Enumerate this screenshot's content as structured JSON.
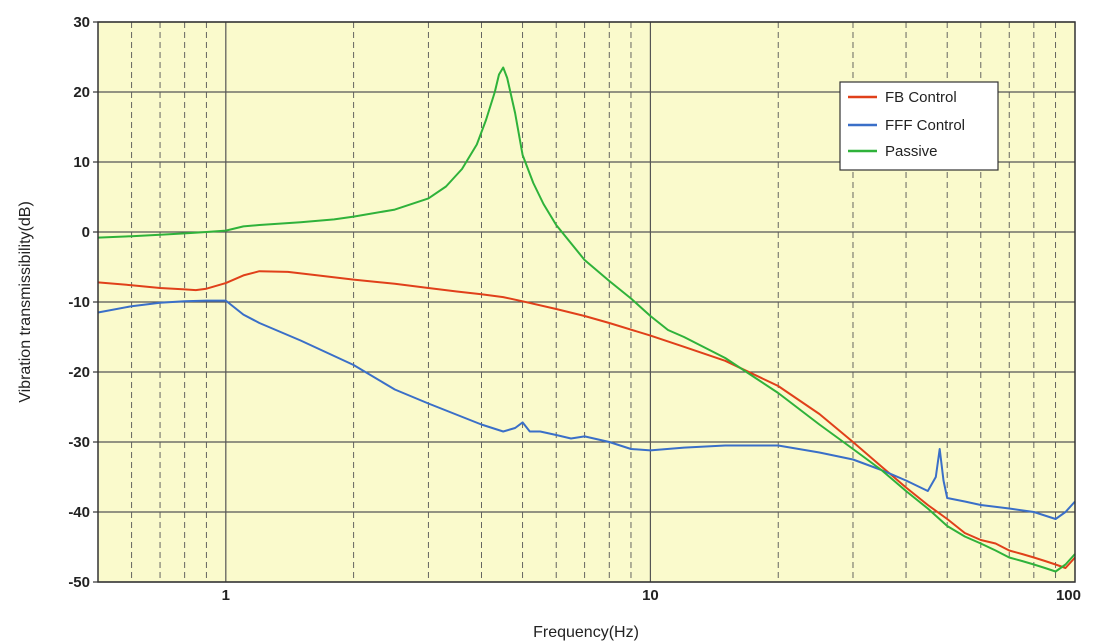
{
  "chart_data": {
    "type": "line",
    "title": "",
    "xlabel": "Frequency(Hz)",
    "ylabel": "Vibration transmissibility(dB)",
    "x_scale": "log",
    "xlim": [
      0.5,
      100
    ],
    "ylim": [
      -50,
      30
    ],
    "x_tick_labels": [
      "1",
      "10",
      "100"
    ],
    "y_tick_labels": [
      "30",
      "20",
      "10",
      "0",
      "-10",
      "-20",
      "-30",
      "-40",
      "-50"
    ],
    "grid": true,
    "legend_position": "top-right",
    "colors": {
      "plot_background": "#fafacc",
      "grid": "#555555"
    },
    "series": [
      {
        "name": "FB Control",
        "color": "#e0401a",
        "x": [
          0.5,
          0.6,
          0.7,
          0.8,
          0.85,
          0.9,
          1.0,
          1.1,
          1.2,
          1.4,
          1.6,
          2.0,
          2.5,
          3.0,
          3.5,
          4.0,
          4.5,
          5.0,
          6.0,
          7.0,
          8.0,
          10.0,
          12.0,
          15.0,
          20.0,
          25.0,
          30.0,
          35.0,
          40.0,
          45.0,
          50.0,
          55.0,
          60.0,
          65.0,
          70.0,
          75.0,
          80.0,
          85.0,
          90.0,
          95.0,
          100.0
        ],
        "y": [
          -7.2,
          -7.6,
          -8.0,
          -8.2,
          -8.3,
          -8.1,
          -7.3,
          -6.2,
          -5.6,
          -5.7,
          -6.1,
          -6.8,
          -7.4,
          -8.0,
          -8.5,
          -8.9,
          -9.3,
          -9.9,
          -11.0,
          -12.0,
          -13.0,
          -14.8,
          -16.4,
          -18.4,
          -22.0,
          -26.0,
          -30.0,
          -33.5,
          -36.5,
          -39.0,
          -41.0,
          -43.0,
          -44.0,
          -44.5,
          -45.5,
          -46.0,
          -46.5,
          -47.0,
          -47.5,
          -48.0,
          -46.5
        ]
      },
      {
        "name": "FFF Control",
        "color": "#3a6fc8",
        "x": [
          0.5,
          0.6,
          0.7,
          0.8,
          0.9,
          1.0,
          1.1,
          1.2,
          1.5,
          2.0,
          2.5,
          3.0,
          4.0,
          4.5,
          4.8,
          5.0,
          5.2,
          5.5,
          6.0,
          6.5,
          7.0,
          8.0,
          9.0,
          10.0,
          12.0,
          15.0,
          20.0,
          25.0,
          30.0,
          35.0,
          40.0,
          45.0,
          47.0,
          48.0,
          49.0,
          50.0,
          55.0,
          60.0,
          70.0,
          80.0,
          90.0,
          95.0,
          100.0
        ],
        "y": [
          -11.5,
          -10.6,
          -10.1,
          -9.9,
          -9.8,
          -9.8,
          -11.8,
          -13.0,
          -15.5,
          -19.0,
          -22.5,
          -24.5,
          -27.5,
          -28.5,
          -28.0,
          -27.2,
          -28.5,
          -28.5,
          -29.0,
          -29.5,
          -29.2,
          -30.0,
          -31.0,
          -31.2,
          -30.8,
          -30.5,
          -30.5,
          -31.5,
          -32.5,
          -34.0,
          -35.5,
          -37.0,
          -35.0,
          -31.0,
          -35.5,
          -38.0,
          -38.5,
          -39.0,
          -39.5,
          -40.0,
          -41.0,
          -40.0,
          -38.5
        ]
      },
      {
        "name": "Passive",
        "color": "#2fb23a",
        "x": [
          0.5,
          0.6,
          0.7,
          0.8,
          0.9,
          1.0,
          1.1,
          1.2,
          1.5,
          1.8,
          2.0,
          2.5,
          3.0,
          3.3,
          3.6,
          3.9,
          4.1,
          4.3,
          4.4,
          4.5,
          4.6,
          4.8,
          5.0,
          5.3,
          5.6,
          6.0,
          7.0,
          8.0,
          9.0,
          10.0,
          11.0,
          12.0,
          15.0,
          20.0,
          25.0,
          30.0,
          35.0,
          40.0,
          45.0,
          50.0,
          55.0,
          60.0,
          65.0,
          70.0,
          75.0,
          80.0,
          85.0,
          90.0,
          95.0,
          100.0
        ],
        "y": [
          -0.8,
          -0.6,
          -0.4,
          -0.2,
          0.0,
          0.2,
          0.8,
          1.0,
          1.4,
          1.8,
          2.2,
          3.2,
          4.8,
          6.5,
          9.0,
          12.5,
          16.0,
          20.0,
          22.5,
          23.5,
          22.0,
          17.0,
          11.0,
          7.0,
          4.0,
          1.0,
          -4.0,
          -7.0,
          -9.5,
          -12.0,
          -14.0,
          -15.0,
          -18.0,
          -23.0,
          -27.5,
          -31.0,
          -34.0,
          -37.0,
          -39.5,
          -42.0,
          -43.5,
          -44.5,
          -45.5,
          -46.5,
          -47.0,
          -47.5,
          -48.0,
          -48.5,
          -47.5,
          -46.0
        ]
      }
    ]
  }
}
